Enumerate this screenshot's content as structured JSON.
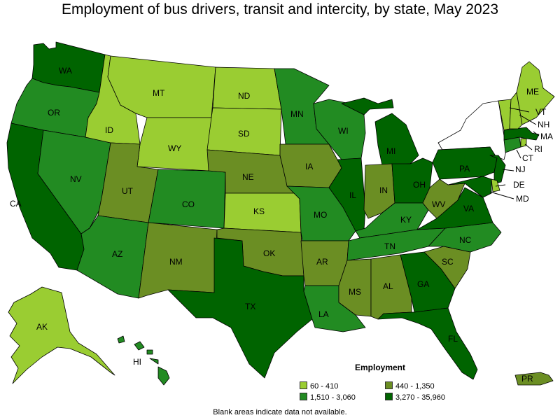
{
  "title": "Employment of bus drivers, transit and intercity, by state, May 2023",
  "footnote": "Blank areas indicate data not available.",
  "legend": {
    "title": "Employment",
    "items": [
      {
        "label": "60 - 410",
        "color": "#9acd32"
      },
      {
        "label": "440 - 1,350",
        "color": "#6b8e23"
      },
      {
        "label": "1,510 - 3,060",
        "color": "#228b22"
      },
      {
        "label": "3,270 - 35,960",
        "color": "#006400"
      }
    ]
  },
  "states": {
    "WA": {
      "label": "WA",
      "class": 3
    },
    "OR": {
      "label": "OR",
      "class": 2
    },
    "CA": {
      "label": "CA",
      "class": 3
    },
    "NV": {
      "label": "NV",
      "class": 2
    },
    "ID": {
      "label": "ID",
      "class": 0
    },
    "MT": {
      "label": "MT",
      "class": 0
    },
    "WY": {
      "label": "WY",
      "class": 0
    },
    "UT": {
      "label": "UT",
      "class": 1
    },
    "AZ": {
      "label": "AZ",
      "class": 2
    },
    "CO": {
      "label": "CO",
      "class": 2
    },
    "NM": {
      "label": "NM",
      "class": 1
    },
    "ND": {
      "label": "ND",
      "class": 0
    },
    "SD": {
      "label": "SD",
      "class": 0
    },
    "NE": {
      "label": "NE",
      "class": 1
    },
    "KS": {
      "label": "KS",
      "class": 0
    },
    "OK": {
      "label": "OK",
      "class": 1
    },
    "TX": {
      "label": "TX",
      "class": 3
    },
    "MN": {
      "label": "MN",
      "class": 2
    },
    "IA": {
      "label": "IA",
      "class": 1
    },
    "MO": {
      "label": "MO",
      "class": 2
    },
    "AR": {
      "label": "AR",
      "class": 1
    },
    "LA": {
      "label": "LA",
      "class": 2
    },
    "WI": {
      "label": "WI",
      "class": 2
    },
    "IL": {
      "label": "IL",
      "class": 3
    },
    "MI": {
      "label": "MI",
      "class": 3
    },
    "IN": {
      "label": "IN",
      "class": 1
    },
    "OH": {
      "label": "OH",
      "class": 3
    },
    "KY": {
      "label": "KY",
      "class": 2
    },
    "TN": {
      "label": "TN",
      "class": 2
    },
    "MS": {
      "label": "MS",
      "class": 1
    },
    "AL": {
      "label": "AL",
      "class": 1
    },
    "GA": {
      "label": "GA",
      "class": 3
    },
    "FL": {
      "label": "FL",
      "class": 3
    },
    "SC": {
      "label": "SC",
      "class": 1
    },
    "NC": {
      "label": "NC",
      "class": 2
    },
    "VA": {
      "label": "VA",
      "class": 3
    },
    "WV": {
      "label": "WV",
      "class": 1
    },
    "PA": {
      "label": "PA",
      "class": 3
    },
    "NY": {
      "label": "",
      "class": null
    },
    "NJ": {
      "label": "NJ",
      "class": 3
    },
    "DE": {
      "label": "DE",
      "class": 0
    },
    "MD": {
      "label": "MD",
      "class": 3
    },
    "CT": {
      "label": "CT",
      "class": 2
    },
    "RI": {
      "label": "RI",
      "class": 0
    },
    "MA": {
      "label": "MA",
      "class": 3
    },
    "VT": {
      "label": "VT",
      "class": 0
    },
    "NH": {
      "label": "NH",
      "class": 0
    },
    "ME": {
      "label": "ME",
      "class": 0
    },
    "AK": {
      "label": "AK",
      "class": 0
    },
    "HI": {
      "label": "HI",
      "class": 2
    },
    "PR": {
      "label": "PR",
      "class": 1
    }
  }
}
